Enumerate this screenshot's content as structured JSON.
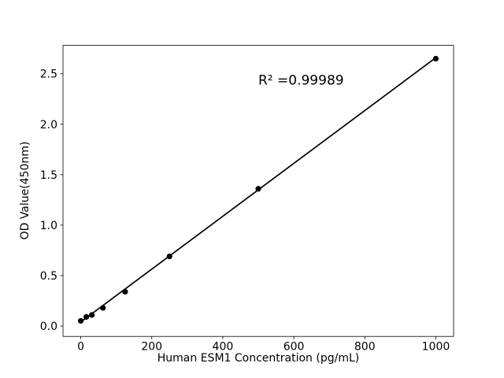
{
  "figure": {
    "background": "#ffffff"
  },
  "chart_data": {
    "type": "scatter",
    "title": "",
    "xlabel": "Human ESM1 Concentration (pg/mL)",
    "ylabel": "OD Value(450nm)",
    "annotation": {
      "text": "R² =0.99989",
      "x": 500,
      "y": 2.43
    },
    "x": [
      0,
      15.6,
      31.25,
      62.5,
      125,
      250,
      500,
      1000
    ],
    "y": [
      0.051,
      0.09,
      0.11,
      0.18,
      0.34,
      0.69,
      1.36,
      2.65
    ],
    "fit_line": {
      "x": [
        0,
        1000
      ],
      "y": [
        0.04,
        2.66
      ]
    },
    "x_ticks": [
      0,
      200,
      400,
      600,
      800,
      1000
    ],
    "x_tick_labels": [
      "0",
      "200",
      "400",
      "600",
      "800",
      "1000"
    ],
    "y_ticks": [
      0.0,
      0.5,
      1.0,
      1.5,
      2.0,
      2.5
    ],
    "y_tick_labels": [
      "0.0",
      "0.5",
      "1.0",
      "1.5",
      "2.0",
      "2.5"
    ],
    "xlim": [
      -50,
      1050
    ],
    "ylim": [
      -0.103,
      2.782
    ],
    "grid": false,
    "legend": null,
    "marker_color": "#000000",
    "line_color": "#000000",
    "axis_color": "#000000"
  }
}
